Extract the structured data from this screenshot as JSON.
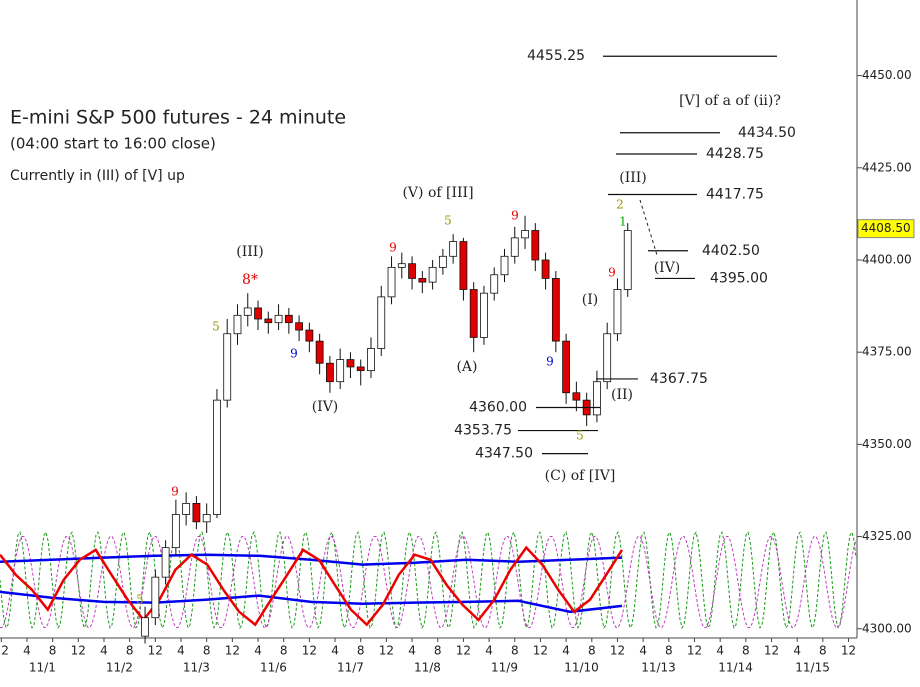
{
  "chart_data": {
    "type": "candlestick",
    "title": "E-mini S&P 500 futures - 24 minute",
    "subtitle": "(04:00 start to 16:00 close)",
    "note": "Currently in (III) of [V] up",
    "up_color": "#ffffff",
    "down_color": "#e00000",
    "x": [
      46,
      50,
      54,
      58,
      62,
      66,
      70,
      74,
      78,
      82,
      86,
      90,
      94,
      98,
      102,
      106,
      110,
      114,
      118,
      122,
      126,
      130,
      134,
      138,
      142,
      146,
      150,
      154,
      158,
      162,
      166,
      170,
      174,
      178,
      182,
      186,
      190,
      194,
      198,
      202,
      206,
      210,
      214,
      218,
      222,
      226,
      230,
      234
    ],
    "candles": [
      [
        4298,
        4306,
        4296,
        4303
      ],
      [
        4303,
        4316,
        4301,
        4314
      ],
      [
        4314,
        4324,
        4312,
        4322
      ],
      [
        4322,
        4335,
        4320,
        4331
      ],
      [
        4331,
        4337,
        4328,
        4334
      ],
      [
        4334,
        4336,
        4327,
        4329
      ],
      [
        4329,
        4334,
        4326,
        4331
      ],
      [
        4331,
        4365,
        4330,
        4362
      ],
      [
        4362,
        4384,
        4360,
        4380
      ],
      [
        4380,
        4388,
        4377,
        4385
      ],
      [
        4385,
        4391,
        4382,
        4387
      ],
      [
        4387,
        4389,
        4381,
        4384
      ],
      [
        4384,
        4386,
        4380,
        4383
      ],
      [
        4383,
        4388,
        4381,
        4385
      ],
      [
        4385,
        4387,
        4380,
        4383
      ],
      [
        4383,
        4385,
        4378,
        4381
      ],
      [
        4381,
        4383,
        4375,
        4378
      ],
      [
        4378,
        4380,
        4369,
        4372
      ],
      [
        4372,
        4374,
        4364,
        4367
      ],
      [
        4367,
        4376,
        4365,
        4373
      ],
      [
        4373,
        4375,
        4368,
        4371
      ],
      [
        4371,
        4373,
        4366,
        4370
      ],
      [
        4370,
        4379,
        4368,
        4376
      ],
      [
        4376,
        4393,
        4374,
        4390
      ],
      [
        4390,
        4401,
        4388,
        4398
      ],
      [
        4398,
        4402,
        4395,
        4399
      ],
      [
        4399,
        4401,
        4392,
        4395
      ],
      [
        4395,
        4397,
        4391,
        4394
      ],
      [
        4394,
        4400,
        4392,
        4398
      ],
      [
        4398,
        4403,
        4396,
        4401
      ],
      [
        4401,
        4407,
        4399,
        4405
      ],
      [
        4405,
        4406,
        4389,
        4392
      ],
      [
        4392,
        4394,
        4375,
        4379
      ],
      [
        4379,
        4393,
        4377,
        4391
      ],
      [
        4391,
        4398,
        4389,
        4396
      ],
      [
        4396,
        4403,
        4394,
        4401
      ],
      [
        4401,
        4409,
        4399,
        4406
      ],
      [
        4406,
        4412,
        4403,
        4408
      ],
      [
        4408,
        4410,
        4397,
        4400
      ],
      [
        4400,
        4402,
        4392,
        4395
      ],
      [
        4395,
        4397,
        4375,
        4378
      ],
      [
        4378,
        4380,
        4361,
        4364
      ],
      [
        4364,
        4367,
        4359,
        4362
      ],
      [
        4362,
        4364,
        4355,
        4358
      ],
      [
        4358,
        4370,
        4356,
        4367
      ],
      [
        4367,
        4383,
        4365,
        4380
      ],
      [
        4380,
        4395,
        4378,
        4392
      ],
      [
        4392,
        4410,
        4390,
        4408
      ]
    ],
    "xlim": [
      -10.5,
      323.3
    ],
    "ylim": [
      4297.5,
      4470.5
    ],
    "yticks": [
      {
        "value": 4300,
        "label": "4300.00"
      },
      {
        "value": 4325,
        "label": "4325.00"
      },
      {
        "value": 4350,
        "label": "4350.00"
      },
      {
        "value": 4375,
        "label": "4375.00"
      },
      {
        "value": 4400,
        "label": "4400.00"
      },
      {
        "value": 4425,
        "label": "4425.00"
      },
      {
        "value": 4450,
        "label": "4450.00"
      }
    ],
    "last_price": {
      "value": 4408.5,
      "label": "4408.50"
    },
    "xticks": [
      {
        "value": -10,
        "label": "12"
      },
      {
        "value": 0,
        "label": "4"
      },
      {
        "value": 10,
        "label": "8"
      },
      {
        "value": 20,
        "label": "12"
      },
      {
        "value": 30,
        "label": "4"
      },
      {
        "value": 40,
        "label": "8"
      },
      {
        "value": 50,
        "label": "12"
      },
      {
        "value": 60,
        "label": "4"
      },
      {
        "value": 70,
        "label": "8"
      },
      {
        "value": 80,
        "label": "12"
      },
      {
        "value": 90,
        "label": "4"
      },
      {
        "value": 100,
        "label": "8"
      },
      {
        "value": 110,
        "label": "12"
      },
      {
        "value": 120,
        "label": "4"
      },
      {
        "value": 130,
        "label": "8"
      },
      {
        "value": 140,
        "label": "12"
      },
      {
        "value": 150,
        "label": "4"
      },
      {
        "value": 160,
        "label": "8"
      },
      {
        "value": 170,
        "label": "12"
      },
      {
        "value": 180,
        "label": "4"
      },
      {
        "value": 190,
        "label": "8"
      },
      {
        "value": 200,
        "label": "12"
      },
      {
        "value": 210,
        "label": "4"
      },
      {
        "value": 220,
        "label": "8"
      },
      {
        "value": 230,
        "label": "12"
      },
      {
        "value": 240,
        "label": "4"
      },
      {
        "value": 250,
        "label": "8"
      },
      {
        "value": 260,
        "label": "12"
      },
      {
        "value": 270,
        "label": "4"
      },
      {
        "value": 280,
        "label": "8"
      },
      {
        "value": 290,
        "label": "12"
      },
      {
        "value": 300,
        "label": "4"
      },
      {
        "value": 310,
        "label": "8"
      },
      {
        "value": 320,
        "label": "12"
      }
    ],
    "dates": [
      "11/1",
      "11/2",
      "11/3",
      "11/6",
      "11/7",
      "11/8",
      "11/9",
      "11/10",
      "11/13",
      "11/14",
      "11/15"
    ],
    "levels": [
      4455.25,
      {
        "value": 4434.5,
        "label": "4434.50"
      },
      4428.75,
      4417.75,
      {
        "value": 4402.5,
        "label": "4402.50"
      },
      {
        "value": 4395,
        "label": "4395.00"
      },
      4367.75,
      {
        "value": 4360,
        "label": "4360.00"
      },
      4353.75,
      {
        "value": 4347.5,
        "label": "4347.50"
      }
    ],
    "annotations": [
      {
        "text": "(III)",
        "color": "#222"
      },
      {
        "text": "8*",
        "color": "#e00000"
      },
      {
        "text": "(IV)",
        "color": "#222"
      },
      {
        "text": "(V) of [III]",
        "color": "#222"
      },
      {
        "text": "(A)",
        "color": "#222"
      },
      {
        "text": "(I)",
        "color": "#222"
      },
      {
        "text": "(II)",
        "color": "#222"
      },
      {
        "text": "(III)",
        "color": "#222"
      },
      {
        "text": "(IV)",
        "color": "#222"
      },
      {
        "text": "(C) of [IV]",
        "color": "#222"
      },
      {
        "text": "[V] of a of (ii)?",
        "color": "#222"
      },
      {
        "text": "9",
        "color": "#e00000"
      },
      {
        "text": "5",
        "color": "#999900"
      },
      {
        "text": "9",
        "color": "#0000dd"
      },
      {
        "text": "9",
        "color": "#e00000"
      },
      {
        "text": "5",
        "color": "#999900"
      },
      {
        "text": "9",
        "color": "#e00000"
      },
      {
        "text": "9",
        "color": "#0000dd"
      },
      {
        "text": "5",
        "color": "#999900"
      },
      {
        "text": "2",
        "color": "#999900"
      },
      {
        "text": "1",
        "color": "#00aa00"
      },
      {
        "text": "9",
        "color": "#e00000"
      },
      {
        "text": "5",
        "color": "#999900"
      }
    ],
    "indicators": [
      {
        "color": "#0000ee",
        "values": [
          4318.2,
          4318.7,
          4319.3,
          4319.8,
          4320.1,
          4319.8,
          4318.7,
          4317.4,
          4317.9,
          4318.7,
          4318.2,
          4318.7,
          4319.3
        ]
      },
      {
        "color": "#0000ee",
        "values": [
          4310.0,
          4308.4,
          4307.3,
          4307.1,
          4307.9,
          4309.0,
          4307.3,
          4306.8,
          4307.1,
          4307.3,
          4307.6,
          4304.6,
          4306.2
        ]
      },
      {
        "color": "#ee0000",
        "values": [
          4320.1,
          4314.6,
          4310.6,
          4305.2,
          4313.3,
          4318.7,
          4321.4,
          4314.6,
          4307.9,
          4302.4,
          4307.9,
          4316.0,
          4320.1,
          4317.4,
          4310.6,
          4304.6,
          4301.1,
          4307.9,
          4314.6,
          4321.4,
          4318.7,
          4311.9,
          4305.2,
          4301.1,
          4306.5,
          4314.6,
          4320.1,
          4318.7,
          4311.9,
          4306.5,
          4302.4,
          4307.9,
          4316.0,
          4322.0,
          4317.4,
          4310.6,
          4304.6,
          4307.9,
          4314.6,
          4321.4
        ]
      }
    ]
  }
}
